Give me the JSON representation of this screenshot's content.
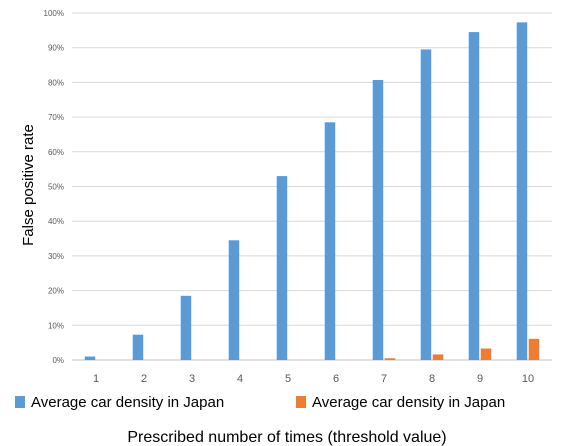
{
  "chart_data": {
    "type": "bar",
    "categories": [
      "1",
      "2",
      "3",
      "4",
      "5",
      "6",
      "7",
      "8",
      "9",
      "10"
    ],
    "series": [
      {
        "name": "Average car density in Japan",
        "color": "#5B9BD5",
        "values": [
          1.0,
          7.3,
          18.5,
          34.5,
          53.0,
          68.5,
          80.7,
          89.5,
          94.5,
          97.3
        ]
      },
      {
        "name": "Average car density in Japan",
        "color": "#ED7D31",
        "values": [
          0,
          0,
          0,
          0,
          0,
          0,
          0.5,
          1.6,
          3.3,
          6.1
        ]
      }
    ],
    "yticks": [
      "0%",
      "10%",
      "20%",
      "30%",
      "40%",
      "50%",
      "60%",
      "70%",
      "80%",
      "90%",
      "100%"
    ],
    "ylim": [
      0,
      100
    ],
    "ylabel": "False positive rate",
    "xlabel": "Prescribed number of times (threshold value)",
    "grid": true,
    "legend_position": "bottom"
  }
}
